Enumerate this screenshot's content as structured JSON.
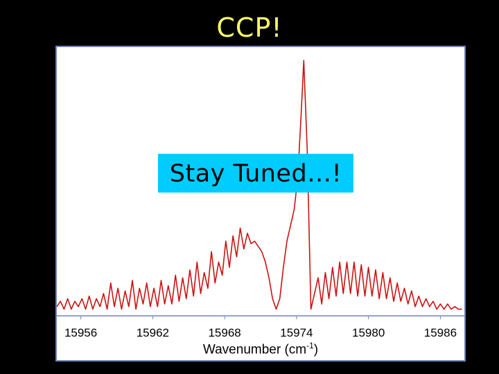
{
  "slide": {
    "title": "CCP!",
    "title_color": "#ffff66",
    "callout_text": "Stay Tuned…!",
    "callout_bg": "#00ccff",
    "callout_color": "#000000"
  },
  "chart_data": {
    "type": "line",
    "title": "",
    "xlabel": {
      "prefix": "Wavenumber (cm",
      "superscript": "-1",
      "suffix": ")"
    },
    "ylabel": "",
    "xlim": [
      15954.0,
      15988.0
    ],
    "ylim": [
      0,
      1.0
    ],
    "xticks": [
      15956,
      15962,
      15968,
      15974,
      15980,
      15986
    ],
    "grid": false,
    "frame_color": "#6b86b5",
    "series": [
      {
        "color": "#cc1111",
        "x": [
          15954.0,
          15954.3,
          15954.6,
          15954.9,
          15955.2,
          15955.5,
          15955.8,
          15956.1,
          15956.4,
          15956.7,
          15957.0,
          15957.3,
          15957.6,
          15957.9,
          15958.2,
          15958.5,
          15958.8,
          15959.1,
          15959.4,
          15959.7,
          15960.0,
          15960.3,
          15960.6,
          15960.9,
          15961.2,
          15961.5,
          15961.8,
          15962.1,
          15962.4,
          15962.7,
          15963.0,
          15963.3,
          15963.6,
          15963.9,
          15964.2,
          15964.5,
          15964.8,
          15965.1,
          15965.4,
          15965.7,
          15966.0,
          15966.3,
          15966.6,
          15966.9,
          15967.2,
          15967.5,
          15967.8,
          15968.1,
          15968.4,
          15968.7,
          15969.0,
          15969.3,
          15969.6,
          15969.9,
          15970.2,
          15970.5,
          15970.8,
          15971.1,
          15971.4,
          15971.7,
          15972.0,
          15972.3,
          15972.6,
          15972.9,
          15973.2,
          15973.5,
          15973.8,
          15974.1,
          15974.4,
          15974.6,
          15974.9,
          15975.2,
          15975.5,
          15975.8,
          15976.1,
          15976.4,
          15976.7,
          15977.0,
          15977.3,
          15977.6,
          15977.9,
          15978.2,
          15978.5,
          15978.8,
          15979.1,
          15979.4,
          15979.7,
          15980.0,
          15980.3,
          15980.6,
          15980.9,
          15981.2,
          15981.5,
          15981.8,
          15982.1,
          15982.4,
          15982.7,
          15983.0,
          15983.3,
          15983.6,
          15983.9,
          15984.2,
          15984.5,
          15984.8,
          15985.1,
          15985.4,
          15985.7,
          15986.0,
          15986.3,
          15986.6,
          15986.9,
          15987.2,
          15987.5,
          15987.8
        ],
        "y": [
          0.03,
          0.05,
          0.02,
          0.06,
          0.02,
          0.05,
          0.03,
          0.06,
          0.02,
          0.07,
          0.02,
          0.06,
          0.03,
          0.08,
          0.02,
          0.12,
          0.03,
          0.1,
          0.02,
          0.09,
          0.03,
          0.13,
          0.02,
          0.1,
          0.04,
          0.12,
          0.03,
          0.1,
          0.03,
          0.13,
          0.04,
          0.11,
          0.04,
          0.15,
          0.05,
          0.14,
          0.06,
          0.17,
          0.07,
          0.2,
          0.08,
          0.16,
          0.1,
          0.24,
          0.12,
          0.2,
          0.15,
          0.28,
          0.18,
          0.3,
          0.22,
          0.33,
          0.25,
          0.31,
          0.27,
          0.28,
          0.26,
          0.24,
          0.2,
          0.14,
          0.06,
          0.02,
          0.06,
          0.18,
          0.28,
          0.34,
          0.4,
          0.52,
          0.78,
          0.97,
          0.62,
          0.02,
          0.08,
          0.14,
          0.04,
          0.16,
          0.06,
          0.18,
          0.07,
          0.2,
          0.08,
          0.2,
          0.08,
          0.2,
          0.07,
          0.19,
          0.07,
          0.18,
          0.07,
          0.17,
          0.06,
          0.16,
          0.06,
          0.14,
          0.05,
          0.12,
          0.05,
          0.1,
          0.04,
          0.09,
          0.03,
          0.07,
          0.03,
          0.06,
          0.03,
          0.05,
          0.02,
          0.04,
          0.02,
          0.04,
          0.02,
          0.03,
          0.02,
          0.02
        ]
      }
    ]
  }
}
